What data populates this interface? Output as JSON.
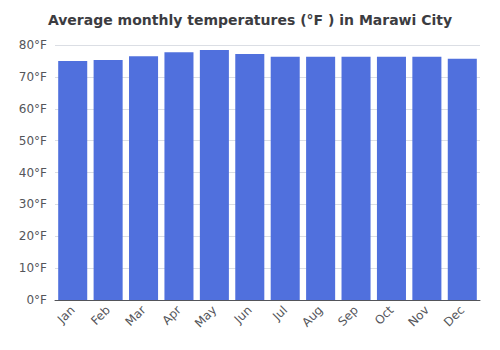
{
  "chart_data": {
    "type": "bar",
    "title": "Average monthly temperatures (°F ) in Marawi City",
    "categories": [
      "Jan",
      "Feb",
      "Mar",
      "Apr",
      "May",
      "Jun",
      "Jul",
      "Aug",
      "Sep",
      "Oct",
      "Nov",
      "Dec"
    ],
    "values": [
      75.0,
      75.3,
      76.5,
      77.7,
      78.4,
      77.2,
      76.3,
      76.3,
      76.3,
      76.3,
      76.3,
      75.7
    ],
    "ylim": [
      0,
      80
    ],
    "yticks": [
      {
        "value": 0,
        "label": "0°F"
      },
      {
        "value": 10,
        "label": "10°F"
      },
      {
        "value": 20,
        "label": "20°F"
      },
      {
        "value": 30,
        "label": "30°F"
      },
      {
        "value": 40,
        "label": "40°F"
      },
      {
        "value": 50,
        "label": "50°F"
      },
      {
        "value": 60,
        "label": "60°F"
      },
      {
        "value": 70,
        "label": "70°F"
      },
      {
        "value": 80,
        "label": "80°F"
      }
    ],
    "grid": true
  }
}
